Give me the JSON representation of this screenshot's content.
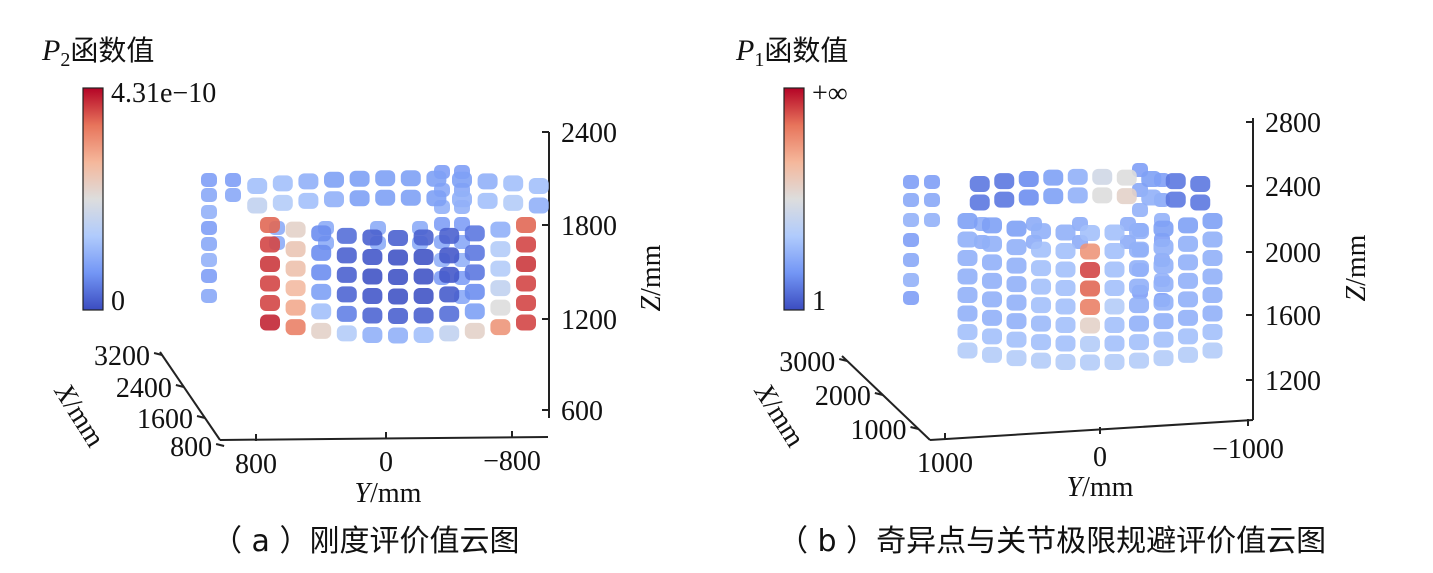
{
  "chart_data": [
    {
      "type": "scatter",
      "subtype": "3d-scatter-colormap",
      "colormap": "coolwarm",
      "colorbar": {
        "title_var": "P",
        "title_sub": "2",
        "title_suffix": "函数值",
        "max_label": "4.31e−10",
        "min_label": "0",
        "colors": [
          "#3b4cc0",
          "#7396f5",
          "#b0cbfc",
          "#dddddd",
          "#f5b79b",
          "#e7745b",
          "#b40426"
        ]
      },
      "axes": {
        "x": {
          "label_var": "X",
          "label_unit": "/mm",
          "ticks": [
            "3200",
            "2400",
            "1600",
            "800"
          ]
        },
        "y": {
          "label_var": "Y",
          "label_unit": "/mm",
          "ticks": [
            "800",
            "0",
            "−800"
          ]
        },
        "z": {
          "label_var": "Z",
          "label_unit": "/mm",
          "ticks": [
            "2400",
            "1800",
            "1200",
            "600"
          ]
        }
      },
      "rows": [
        {
          "count": 12,
          "values": [
            0.3,
            0.3,
            0.25,
            0.2,
            0.2,
            0.2,
            0.2,
            0.2,
            0.2,
            0.25,
            0.3,
            0.3
          ]
        },
        {
          "count": 12,
          "values": [
            0.4,
            0.35,
            0.3,
            0.25,
            0.2,
            0.2,
            0.2,
            0.2,
            0.25,
            0.3,
            0.35,
            0.25
          ]
        },
        {
          "count": 11,
          "values": [
            0.85,
            0.55,
            0.15,
            0.08,
            0.05,
            0.05,
            0.05,
            0.05,
            0.1,
            0.25,
            0.85
          ]
        },
        {
          "count": 11,
          "values": [
            0.9,
            0.6,
            0.15,
            0.05,
            0.03,
            0.02,
            0.02,
            0.03,
            0.1,
            0.35,
            0.9
          ]
        },
        {
          "count": 11,
          "values": [
            0.92,
            0.62,
            0.15,
            0.05,
            0.02,
            0.02,
            0.02,
            0.03,
            0.1,
            0.35,
            0.92
          ]
        },
        {
          "count": 11,
          "values": [
            0.9,
            0.65,
            0.2,
            0.06,
            0.03,
            0.02,
            0.02,
            0.04,
            0.15,
            0.4,
            0.9
          ]
        },
        {
          "count": 11,
          "values": [
            0.9,
            0.7,
            0.3,
            0.12,
            0.06,
            0.05,
            0.05,
            0.08,
            0.2,
            0.5,
            0.9
          ]
        },
        {
          "count": 11,
          "values": [
            0.95,
            0.8,
            0.55,
            0.35,
            0.25,
            0.25,
            0.3,
            0.4,
            0.55,
            0.75,
            0.9
          ]
        }
      ]
    },
    {
      "type": "scatter",
      "subtype": "3d-scatter-colormap",
      "colormap": "coolwarm",
      "colorbar": {
        "title_var": "P",
        "title_sub": "1",
        "title_suffix": "函数值",
        "max_label": "+∞",
        "min_label": "1",
        "colors": [
          "#3b4cc0",
          "#7396f5",
          "#b0cbfc",
          "#dddddd",
          "#f5b79b",
          "#e7745b",
          "#b40426"
        ]
      },
      "axes": {
        "x": {
          "label_var": "X",
          "label_unit": "/mm",
          "ticks": [
            "3000",
            "2000",
            "1000"
          ]
        },
        "y": {
          "label_var": "Y",
          "label_unit": "/mm",
          "ticks": [
            "1000",
            "0",
            "−1000"
          ]
        },
        "z": {
          "label_var": "Z",
          "label_unit": "/mm",
          "ticks": [
            "2800",
            "2400",
            "2000",
            "1600",
            "1200"
          ]
        }
      },
      "rows": [
        {
          "count": 10,
          "values": [
            0.1,
            0.1,
            0.15,
            0.2,
            0.25,
            0.45,
            0.5,
            0.2,
            0.1,
            0.1
          ]
        },
        {
          "count": 10,
          "values": [
            0.1,
            0.1,
            0.15,
            0.2,
            0.25,
            0.5,
            0.55,
            0.25,
            0.1,
            0.1
          ]
        },
        {
          "count": 11,
          "values": [
            0.2,
            0.2,
            0.2,
            0.25,
            0.25,
            0.3,
            0.3,
            0.25,
            0.2,
            0.2,
            0.2
          ]
        },
        {
          "count": 11,
          "values": [
            0.25,
            0.25,
            0.25,
            0.3,
            0.3,
            0.75,
            0.3,
            0.25,
            0.25,
            0.25,
            0.25
          ]
        },
        {
          "count": 11,
          "values": [
            0.25,
            0.25,
            0.25,
            0.3,
            0.3,
            0.9,
            0.3,
            0.25,
            0.25,
            0.25,
            0.25
          ]
        },
        {
          "count": 11,
          "values": [
            0.25,
            0.25,
            0.25,
            0.3,
            0.3,
            0.85,
            0.3,
            0.25,
            0.25,
            0.25,
            0.25
          ]
        },
        {
          "count": 11,
          "values": [
            0.25,
            0.25,
            0.25,
            0.3,
            0.3,
            0.8,
            0.35,
            0.25,
            0.25,
            0.25,
            0.25
          ]
        },
        {
          "count": 11,
          "values": [
            0.25,
            0.25,
            0.25,
            0.28,
            0.3,
            0.55,
            0.3,
            0.25,
            0.25,
            0.25,
            0.25
          ]
        },
        {
          "count": 11,
          "values": [
            0.3,
            0.3,
            0.3,
            0.3,
            0.3,
            0.35,
            0.3,
            0.3,
            0.3,
            0.3,
            0.3
          ]
        },
        {
          "count": 11,
          "values": [
            0.35,
            0.35,
            0.35,
            0.35,
            0.35,
            0.35,
            0.35,
            0.35,
            0.35,
            0.35,
            0.35
          ]
        }
      ]
    }
  ],
  "captions": {
    "a": "（ a ）刚度评价值云图",
    "b": "（ b ）奇异点与关节极限规避评价值云图"
  }
}
